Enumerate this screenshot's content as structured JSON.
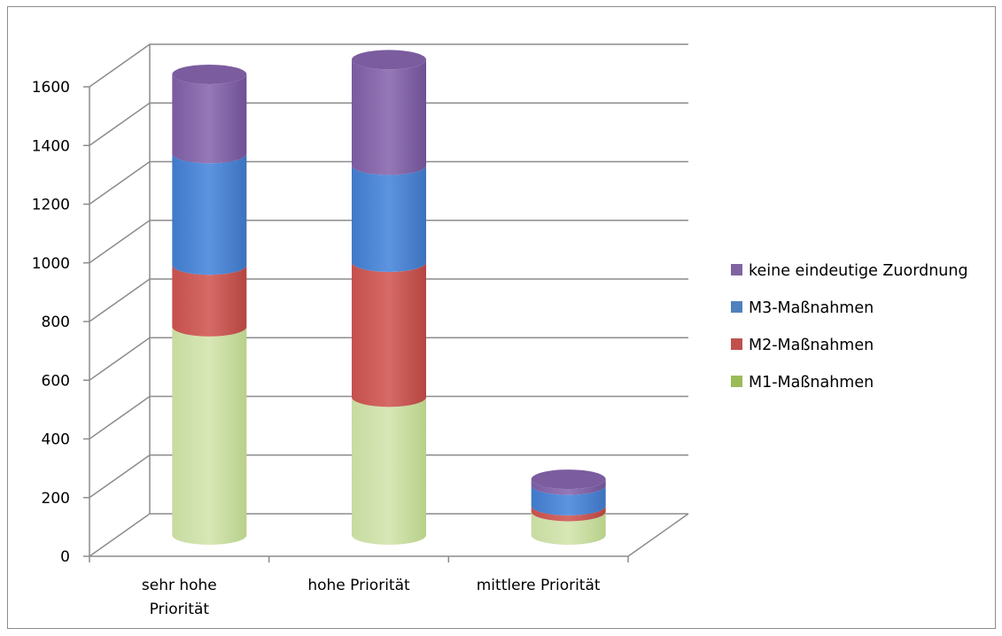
{
  "chart_data": {
    "type": "bar",
    "stacked": true,
    "style": "3d-cylinder",
    "categories": [
      "sehr hohe Priorität",
      "hohe Priorität",
      "mittlere Priorität"
    ],
    "category_lines": [
      [
        "sehr hohe",
        "Priorität"
      ],
      [
        "hohe Priorität"
      ],
      [
        "mittlere Priorität"
      ]
    ],
    "series": [
      {
        "name": "M1-Maßnahmen",
        "values": [
          710,
          470,
          80
        ],
        "color": "#9BBB59"
      },
      {
        "name": "M2-Maßnahmen",
        "values": [
          210,
          460,
          20
        ],
        "color": "#C0504D"
      },
      {
        "name": "M3-Maßnahmen",
        "values": [
          380,
          330,
          70
        ],
        "color": "#4F81BD"
      },
      {
        "name": "keine eindeutige Zuordnung",
        "values": [
          270,
          360,
          20
        ],
        "color": "#8064A2"
      }
    ],
    "legend_order": [
      "keine eindeutige Zuordnung",
      "M3-Maßnahmen",
      "M2-Maßnahmen",
      "M1-Maßnahmen"
    ],
    "ylim": [
      0,
      1600
    ],
    "yticks": [
      0,
      200,
      400,
      600,
      800,
      1000,
      1200,
      1400,
      1600
    ],
    "grid": true,
    "legend_position": "right",
    "title": "",
    "xlabel": "",
    "ylabel": ""
  }
}
